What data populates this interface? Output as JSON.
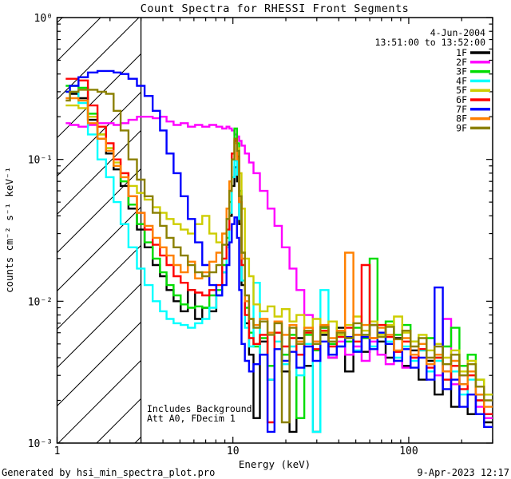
{
  "header": {
    "date": "4-Jun-2004",
    "time_range": "13:51:00 to 13:52:00"
  },
  "notes": {
    "line1": "Includes Background",
    "line2": "Att A0, FDecim 1"
  },
  "footer": {
    "left": "Generated by hsi_min_spectra_plot.pro",
    "right": "9-Apr-2023 12:17"
  },
  "chart_data": {
    "type": "line",
    "title": "Count Spectra for RHESSI Front Segments",
    "xlabel": "Energy (keV)",
    "ylabel": "counts cm⁻² s⁻¹ keV⁻¹",
    "x_scale": "log",
    "y_scale": "log",
    "xlim": [
      1,
      300
    ],
    "ylim": [
      0.001,
      1
    ],
    "grid": false,
    "legend_position": "top-right",
    "x_ticks": [
      {
        "value": 1,
        "label": "1"
      },
      {
        "value": 10,
        "label": "10"
      },
      {
        "value": 100,
        "label": "100"
      }
    ],
    "y_ticks": [
      {
        "value": 1,
        "label": "10⁰"
      },
      {
        "value": 0.1,
        "label": "10⁻¹"
      },
      {
        "value": 0.01,
        "label": "10⁻²"
      },
      {
        "value": 0.001,
        "label": "10⁻³"
      }
    ],
    "hatched_region": {
      "x_min": 1,
      "x_max": 3
    },
    "energy_bins_keV": [
      1.12,
      1.25,
      1.4,
      1.6,
      1.8,
      2.0,
      2.2,
      2.4,
      2.7,
      3.0,
      3.3,
      3.7,
      4.0,
      4.4,
      4.8,
      5.3,
      5.8,
      6.4,
      7.0,
      7.7,
      8.4,
      9.0,
      9.4,
      9.7,
      10.0,
      10.4,
      10.7,
      11.0,
      11.4,
      12.0,
      12.7,
      13.5,
      15,
      16.5,
      18,
      20,
      22,
      24,
      27,
      30,
      33,
      37,
      41,
      46,
      51,
      57,
      63,
      70,
      78,
      87,
      97,
      108,
      120,
      133,
      148,
      165,
      184,
      205,
      228,
      254,
      283
    ],
    "series": [
      {
        "name": "1F",
        "color": "#000000",
        "values": [
          0.3,
          0.29,
          0.27,
          0.19,
          0.14,
          0.11,
          0.085,
          0.065,
          0.045,
          0.032,
          0.024,
          0.018,
          0.015,
          0.012,
          0.01,
          0.0085,
          0.012,
          0.0075,
          0.009,
          0.0085,
          0.011,
          0.016,
          0.025,
          0.04,
          0.065,
          0.088,
          0.07,
          0.035,
          0.013,
          0.007,
          0.0042,
          0.0015,
          0.0052,
          0.0028,
          0.006,
          0.0032,
          0.0012,
          0.0055,
          0.0035,
          0.0012,
          0.0058,
          0.004,
          0.0065,
          0.0032,
          0.0058,
          0.0044,
          0.0068,
          0.0052,
          0.004,
          0.0055,
          0.0035,
          0.0045,
          0.0028,
          0.0038,
          0.0022,
          0.0032,
          0.0018,
          0.0026,
          0.0016,
          0.0022,
          0.0014
        ]
      },
      {
        "name": "2F",
        "color": "#FF00FF",
        "values": [
          0.18,
          0.175,
          0.17,
          0.175,
          0.18,
          0.18,
          0.175,
          0.18,
          0.19,
          0.2,
          0.2,
          0.195,
          0.2,
          0.185,
          0.175,
          0.18,
          0.17,
          0.175,
          0.17,
          0.175,
          0.17,
          0.165,
          0.17,
          0.165,
          0.16,
          0.15,
          0.145,
          0.135,
          0.125,
          0.11,
          0.095,
          0.08,
          0.06,
          0.045,
          0.034,
          0.024,
          0.017,
          0.012,
          0.008,
          0.0052,
          0.0065,
          0.004,
          0.0052,
          0.0042,
          0.0048,
          0.0038,
          0.0052,
          0.0042,
          0.0036,
          0.0044,
          0.0034,
          0.004,
          0.0046,
          0.0036,
          0.003,
          0.0075,
          0.0026,
          0.003,
          0.0022,
          0.0018,
          0.0015
        ]
      },
      {
        "name": "3F",
        "color": "#00DD00",
        "values": [
          0.33,
          0.33,
          0.32,
          0.21,
          0.15,
          0.12,
          0.09,
          0.07,
          0.048,
          0.035,
          0.026,
          0.02,
          0.016,
          0.013,
          0.011,
          0.0095,
          0.009,
          0.0092,
          0.009,
          0.011,
          0.012,
          0.018,
          0.028,
          0.05,
          0.11,
          0.165,
          0.13,
          0.06,
          0.022,
          0.009,
          0.006,
          0.0048,
          0.0055,
          0.0035,
          0.006,
          0.0042,
          0.0058,
          0.0015,
          0.0058,
          0.0045,
          0.0065,
          0.005,
          0.0058,
          0.0052,
          0.0065,
          0.0055,
          0.02,
          0.006,
          0.0072,
          0.0058,
          0.0068,
          0.0052,
          0.0045,
          0.0055,
          0.004,
          0.0048,
          0.0065,
          0.0035,
          0.0042,
          0.0028,
          0.0022
        ]
      },
      {
        "name": "4F",
        "color": "#00FFFF",
        "values": [
          0.3,
          0.3,
          0.25,
          0.15,
          0.1,
          0.075,
          0.05,
          0.035,
          0.024,
          0.017,
          0.013,
          0.01,
          0.0085,
          0.0075,
          0.007,
          0.0068,
          0.0065,
          0.007,
          0.0075,
          0.009,
          0.011,
          0.016,
          0.024,
          0.042,
          0.075,
          0.098,
          0.078,
          0.038,
          0.014,
          0.0065,
          0.0048,
          0.0135,
          0.0042,
          0.0028,
          0.0052,
          0.0036,
          0.0048,
          0.003,
          0.005,
          0.0012,
          0.012,
          0.0042,
          0.0048,
          0.0055,
          0.0045,
          0.0058,
          0.0048,
          0.006,
          0.0052,
          0.004,
          0.0048,
          0.0038,
          0.0045,
          0.0032,
          0.0038,
          0.0028,
          0.0032,
          0.0022,
          0.0028,
          0.002,
          0.0016
        ]
      },
      {
        "name": "5F",
        "color": "#CDCD00",
        "values": [
          0.24,
          0.24,
          0.23,
          0.2,
          0.15,
          0.12,
          0.095,
          0.08,
          0.065,
          0.058,
          0.052,
          0.046,
          0.042,
          0.038,
          0.035,
          0.032,
          0.03,
          0.035,
          0.04,
          0.03,
          0.026,
          0.03,
          0.045,
          0.07,
          0.1,
          0.14,
          0.12,
          0.08,
          0.045,
          0.02,
          0.015,
          0.0095,
          0.0085,
          0.0092,
          0.0078,
          0.0088,
          0.0072,
          0.008,
          0.0065,
          0.0075,
          0.006,
          0.0072,
          0.0058,
          0.0068,
          0.0078,
          0.0062,
          0.0072,
          0.0058,
          0.0068,
          0.0078,
          0.006,
          0.0052,
          0.0058,
          0.0045,
          0.005,
          0.004,
          0.0045,
          0.0032,
          0.0038,
          0.0028,
          0.0022
        ]
      },
      {
        "name": "6F",
        "color": "#FF0000",
        "values": [
          0.37,
          0.37,
          0.36,
          0.24,
          0.17,
          0.13,
          0.1,
          0.08,
          0.055,
          0.042,
          0.032,
          0.025,
          0.021,
          0.018,
          0.015,
          0.0135,
          0.012,
          0.0115,
          0.011,
          0.012,
          0.013,
          0.02,
          0.032,
          0.06,
          0.11,
          0.135,
          0.105,
          0.05,
          0.018,
          0.008,
          0.0055,
          0.005,
          0.0058,
          0.0014,
          0.006,
          0.0048,
          0.0055,
          0.0042,
          0.006,
          0.0046,
          0.0062,
          0.0048,
          0.0056,
          0.0065,
          0.0052,
          0.018,
          0.0055,
          0.0068,
          0.0056,
          0.0044,
          0.0052,
          0.004,
          0.0046,
          0.0034,
          0.004,
          0.0028,
          0.0035,
          0.0024,
          0.003,
          0.002,
          0.0016
        ]
      },
      {
        "name": "7F",
        "color": "#0000FF",
        "values": [
          0.3,
          0.33,
          0.38,
          0.41,
          0.42,
          0.42,
          0.41,
          0.4,
          0.37,
          0.33,
          0.28,
          0.22,
          0.16,
          0.11,
          0.08,
          0.055,
          0.038,
          0.026,
          0.018,
          0.013,
          0.011,
          0.013,
          0.018,
          0.026,
          0.035,
          0.039,
          0.028,
          0.012,
          0.005,
          0.0038,
          0.0032,
          0.0036,
          0.0042,
          0.0012,
          0.0046,
          0.0038,
          0.0044,
          0.0034,
          0.0048,
          0.0038,
          0.0052,
          0.0042,
          0.0048,
          0.0056,
          0.0044,
          0.0056,
          0.0046,
          0.006,
          0.005,
          0.0038,
          0.0046,
          0.0034,
          0.004,
          0.0028,
          0.0125,
          0.0024,
          0.0028,
          0.0018,
          0.0022,
          0.0016,
          0.0013
        ]
      },
      {
        "name": "8F",
        "color": "#FF8000",
        "values": [
          0.27,
          0.27,
          0.26,
          0.18,
          0.14,
          0.115,
          0.09,
          0.075,
          0.055,
          0.042,
          0.034,
          0.028,
          0.024,
          0.021,
          0.018,
          0.016,
          0.019,
          0.0145,
          0.016,
          0.019,
          0.022,
          0.03,
          0.045,
          0.07,
          0.1,
          0.13,
          0.1,
          0.05,
          0.02,
          0.01,
          0.0075,
          0.0068,
          0.0075,
          0.006,
          0.0072,
          0.0058,
          0.0068,
          0.0052,
          0.0065,
          0.0052,
          0.0068,
          0.0055,
          0.0062,
          0.022,
          0.0058,
          0.0068,
          0.0055,
          0.0065,
          0.0058,
          0.0045,
          0.0055,
          0.0042,
          0.005,
          0.0036,
          0.0042,
          0.0032,
          0.0038,
          0.0026,
          0.0032,
          0.0022,
          0.0018
        ]
      },
      {
        "name": "9F",
        "color": "#8B8000",
        "values": [
          0.26,
          0.3,
          0.31,
          0.31,
          0.3,
          0.29,
          0.22,
          0.16,
          0.1,
          0.072,
          0.055,
          0.042,
          0.034,
          0.028,
          0.024,
          0.021,
          0.018,
          0.016,
          0.015,
          0.016,
          0.018,
          0.025,
          0.038,
          0.06,
          0.1,
          0.14,
          0.115,
          0.055,
          0.022,
          0.011,
          0.0075,
          0.0065,
          0.0072,
          0.0058,
          0.007,
          0.0014,
          0.0065,
          0.005,
          0.0062,
          0.005,
          0.0066,
          0.0052,
          0.006,
          0.0055,
          0.007,
          0.0058,
          0.0068,
          0.0056,
          0.0066,
          0.0054,
          0.0062,
          0.0048,
          0.0055,
          0.004,
          0.0048,
          0.0036,
          0.0042,
          0.003,
          0.0036,
          0.0025,
          0.002
        ]
      }
    ]
  }
}
